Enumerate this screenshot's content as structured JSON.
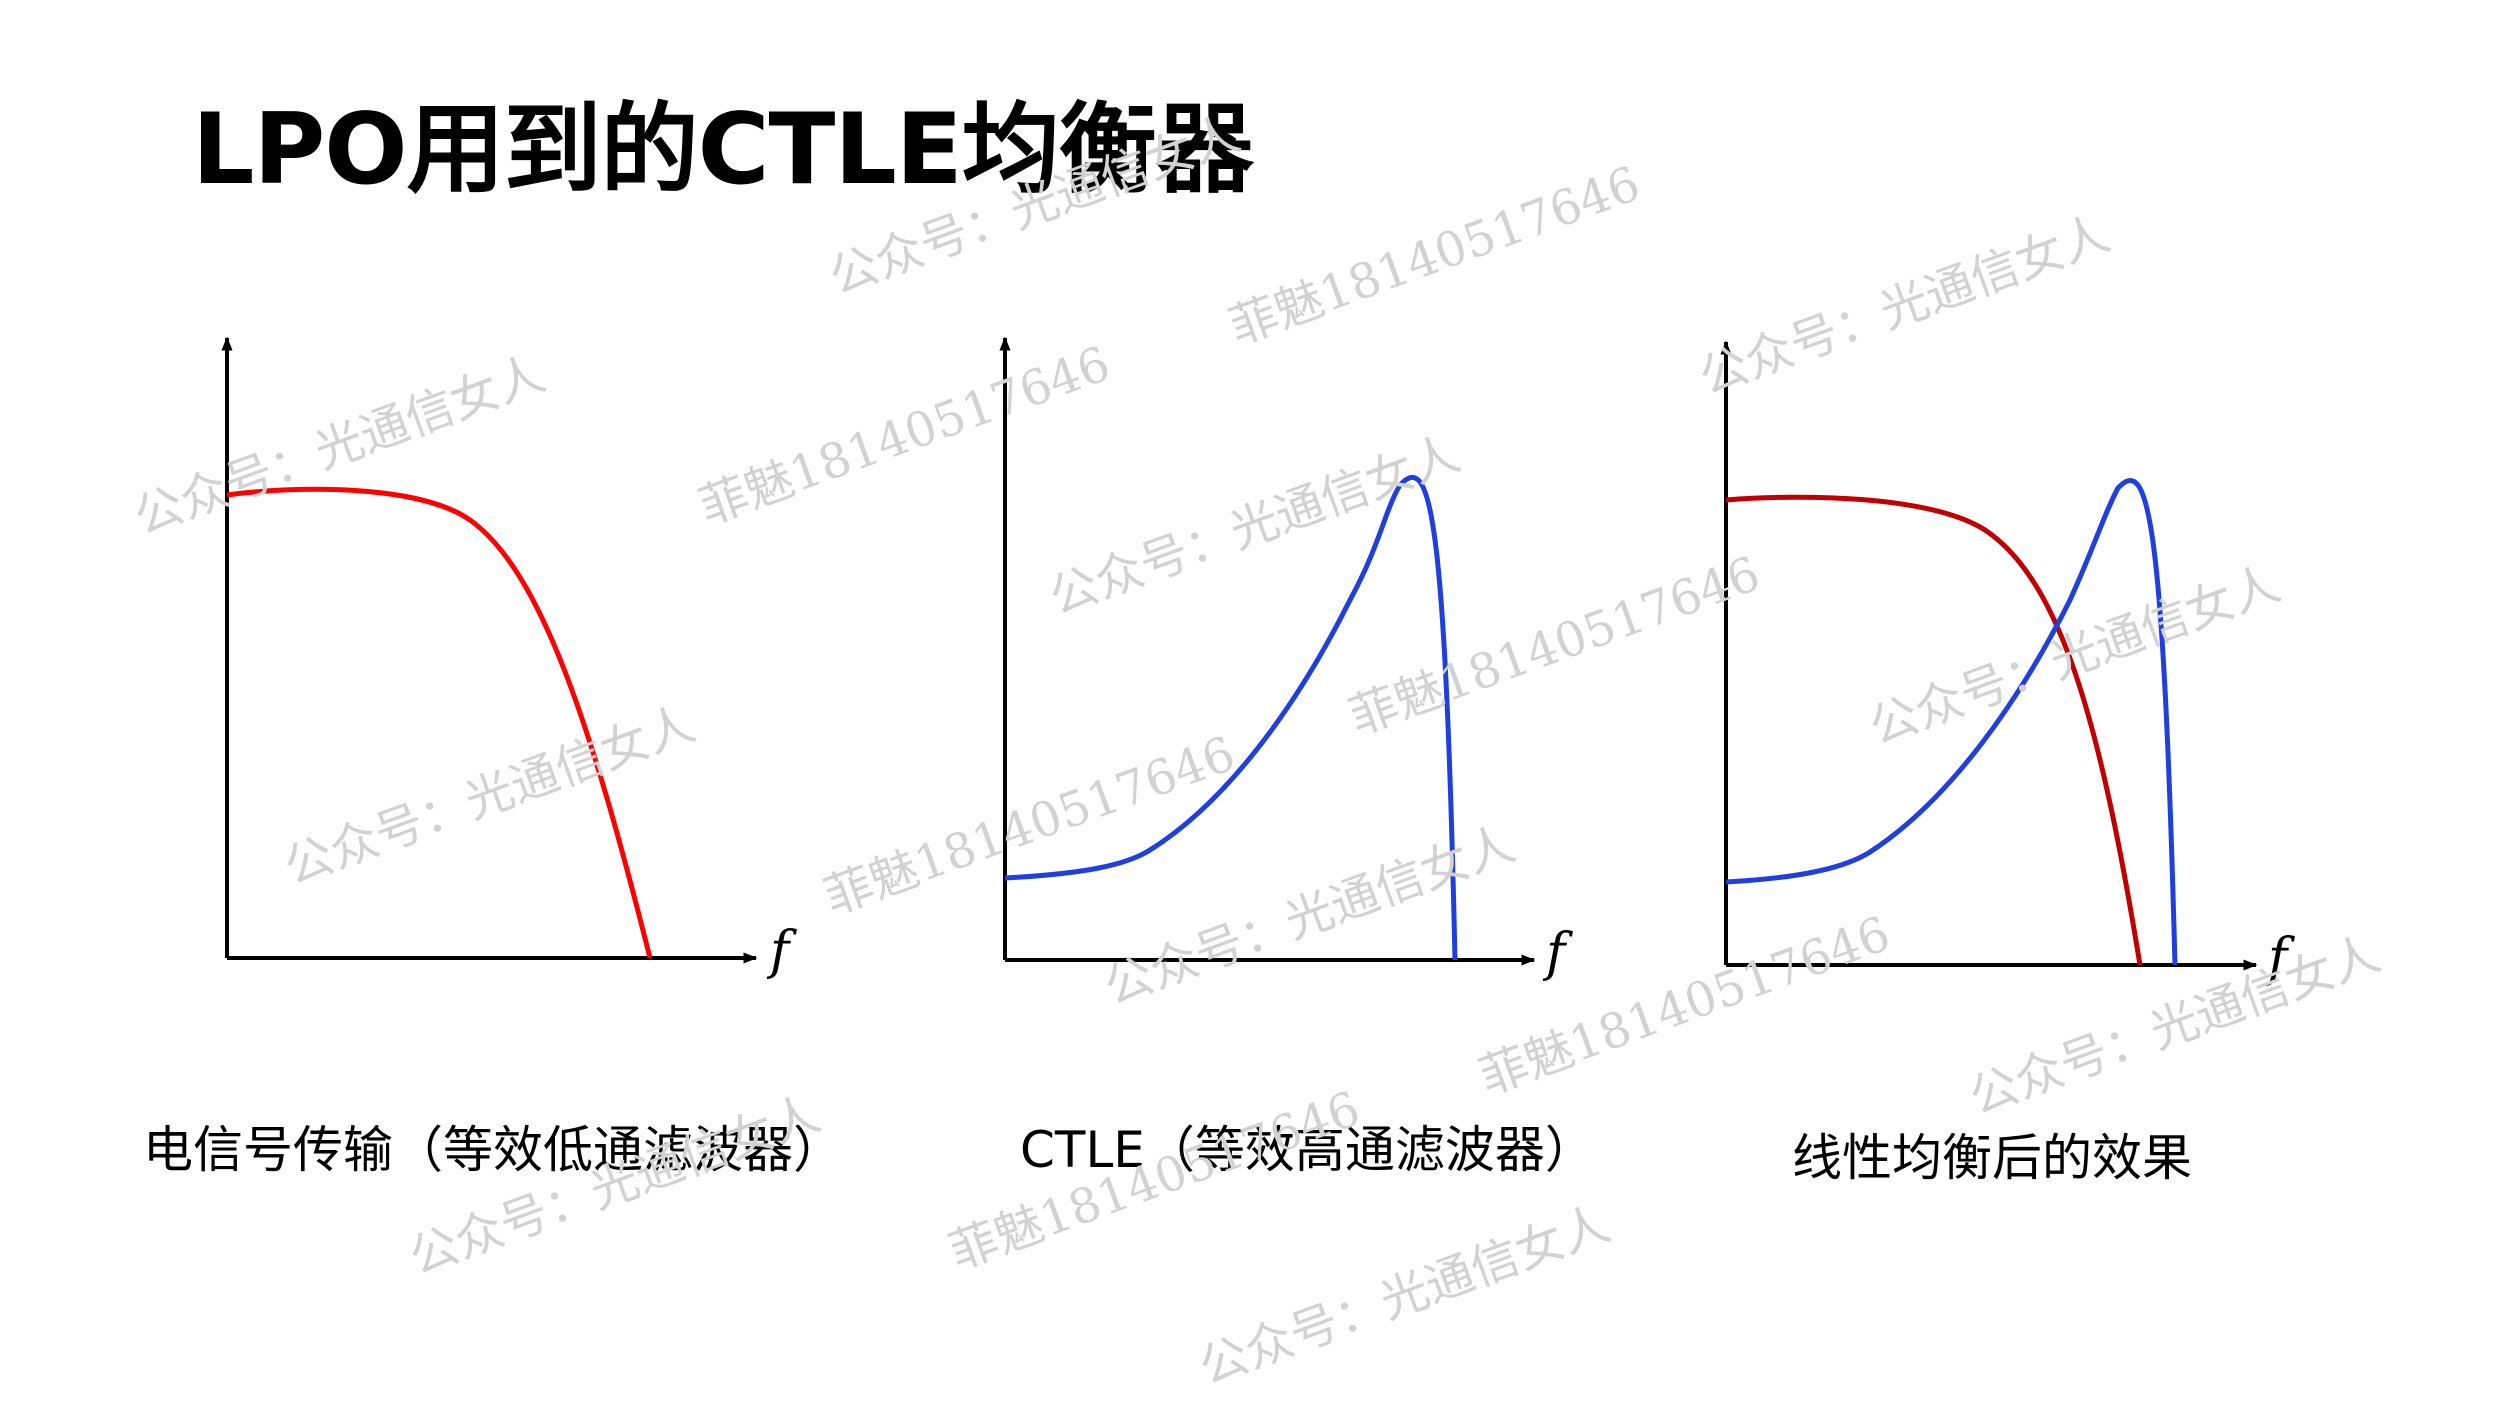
{
  "title": "LPO用到的CTLE均衡器",
  "watermarks": [
    "公众号：光通信女人",
    "菲魅18140517646"
  ],
  "panels": [
    {
      "caption": "电信号传输（等效低通滤波器）",
      "x_axis_label": "f",
      "curves": [
        {
          "name": "",
          "color": "#ff0000"
        }
      ]
    },
    {
      "caption": "CTLE（等效高通滤波器）",
      "x_axis_label": "f",
      "curves": [
        {
          "name": "",
          "color": "#1f3fe0"
        }
      ]
    },
    {
      "caption": "线性均衡后的效果",
      "x_axis_label": "f",
      "curves": [
        {
          "name": "",
          "color": "#c00000"
        },
        {
          "name": "",
          "color": "#1f3fe0"
        }
      ]
    }
  ]
}
